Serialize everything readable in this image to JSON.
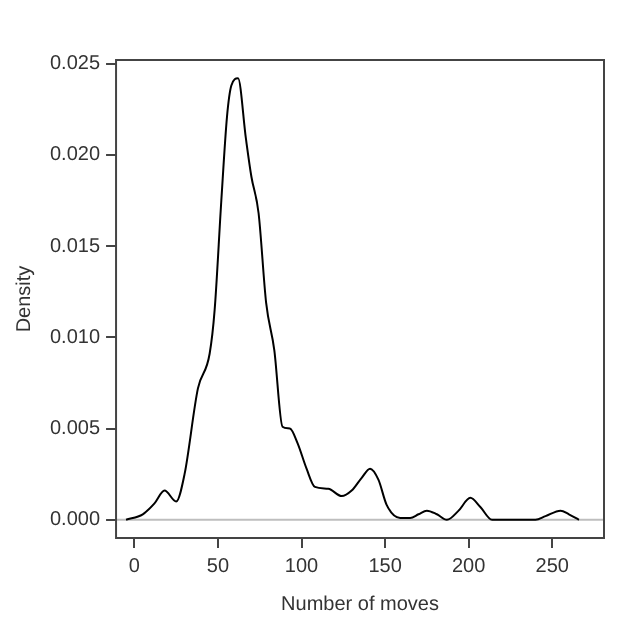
{
  "chart_data": {
    "type": "line",
    "xlabel": "Number of moves",
    "ylabel": "Density",
    "xlim": [
      -11,
      281
    ],
    "ylim": [
      -0.001,
      0.0252
    ],
    "xticks": [
      0,
      50,
      100,
      150,
      200,
      250
    ],
    "yticks": [
      {
        "value": 0,
        "label": "0.000"
      },
      0.005,
      {
        "value": 0.01,
        "label": "0.010"
      },
      0.015,
      {
        "value": 0.02,
        "label": "0.020"
      },
      0.025
    ],
    "grid": false,
    "legend": false,
    "marker": "none",
    "line_style": "solid",
    "ref_lines": [
      {
        "axis": "y",
        "value": 0,
        "color": "#bebebe"
      }
    ],
    "series": [
      {
        "color": "#000000",
        "x": [
          -5,
          5,
          12,
          18,
          25,
          30,
          38,
          45,
          48,
          52,
          55.4,
          58,
          62,
          66.7,
          70,
          74.3,
          78.8,
          83.7,
          88.6,
          93,
          97.6,
          103,
          108,
          116,
          124,
          130,
          136,
          141,
          146,
          151,
          159,
          165,
          170,
          175,
          181,
          187,
          194,
          201,
          207,
          214,
          232,
          240,
          246,
          255,
          260,
          266
        ],
        "values": [
          0,
          0.0003,
          0.0009,
          0.0016,
          0.001,
          0.0025,
          0.0072,
          0.0091,
          0.0115,
          0.0175,
          0.0221,
          0.0238,
          0.0242,
          0.0209,
          0.0188,
          0.0168,
          0.0119,
          0.0093,
          0.0051,
          0.005,
          0.0042,
          0.0028,
          0.0018,
          0.0017,
          0.0013,
          0.0016,
          0.0023,
          0.0028,
          0.0022,
          0.0008,
          0.0001,
          0.0001,
          0.0003,
          0.0005,
          0.0003,
          0,
          0.0005,
          0.0012,
          0.0007,
          0,
          0,
          0,
          0.0002,
          0.0005,
          0.0003,
          0
        ]
      }
    ]
  }
}
